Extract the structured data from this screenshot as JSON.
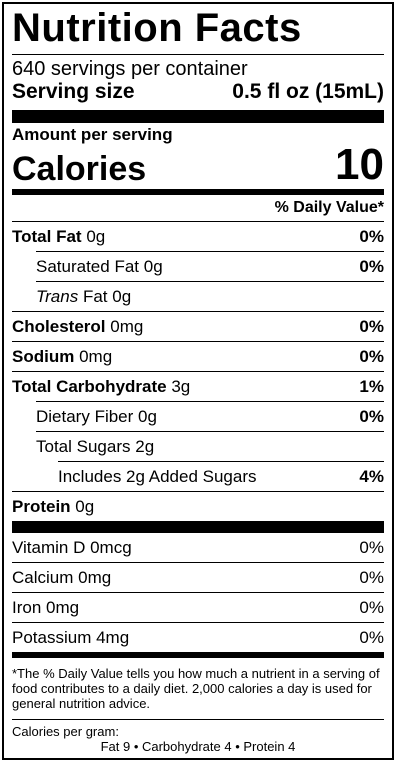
{
  "title": "Nutrition Facts",
  "servings_per_container": "640 servings per container",
  "serving_size_label": "Serving size",
  "serving_size_value": "0.5 fl oz (15mL)",
  "amount_per_serving": "Amount per serving",
  "calories_label": "Calories",
  "calories_value": "10",
  "dv_header": "% Daily Value*",
  "nutrients": {
    "total_fat": {
      "name": "Total Fat",
      "amount": "0g",
      "dv": "0%"
    },
    "saturated_fat": {
      "name": "Saturated Fat",
      "amount": "0g",
      "dv": "0%"
    },
    "trans_fat": {
      "name_italic": "Trans",
      "name": "Fat",
      "amount": "0g"
    },
    "cholesterol": {
      "name": "Cholesterol",
      "amount": "0mg",
      "dv": "0%"
    },
    "sodium": {
      "name": "Sodium",
      "amount": "0mg",
      "dv": "0%"
    },
    "total_carbohydrate": {
      "name": "Total Carbohydrate",
      "amount": "3g",
      "dv": "1%"
    },
    "dietary_fiber": {
      "name": "Dietary Fiber",
      "amount": "0g",
      "dv": "0%"
    },
    "total_sugars": {
      "name": "Total Sugars",
      "amount": "2g"
    },
    "added_sugars": {
      "name": "Includes 2g Added Sugars",
      "dv": "4%"
    },
    "protein": {
      "name": "Protein",
      "amount": "0g"
    }
  },
  "vitamins": [
    {
      "name": "Vitamin D 0mcg",
      "dv": "0%"
    },
    {
      "name": "Calcium 0mg",
      "dv": "0%"
    },
    {
      "name": "Iron 0mg",
      "dv": "0%"
    },
    {
      "name": "Potassium 4mg",
      "dv": "0%"
    }
  ],
  "footnote": "*The % Daily Value tells you how much a nutrient in a serving of food contributes to a daily diet. 2,000 calories a day is used for general nutrition advice.",
  "calories_per_gram_label": "Calories per gram:",
  "calories_per_gram": "Fat 9  •  Carbohydrate 4  •  Protein 4"
}
